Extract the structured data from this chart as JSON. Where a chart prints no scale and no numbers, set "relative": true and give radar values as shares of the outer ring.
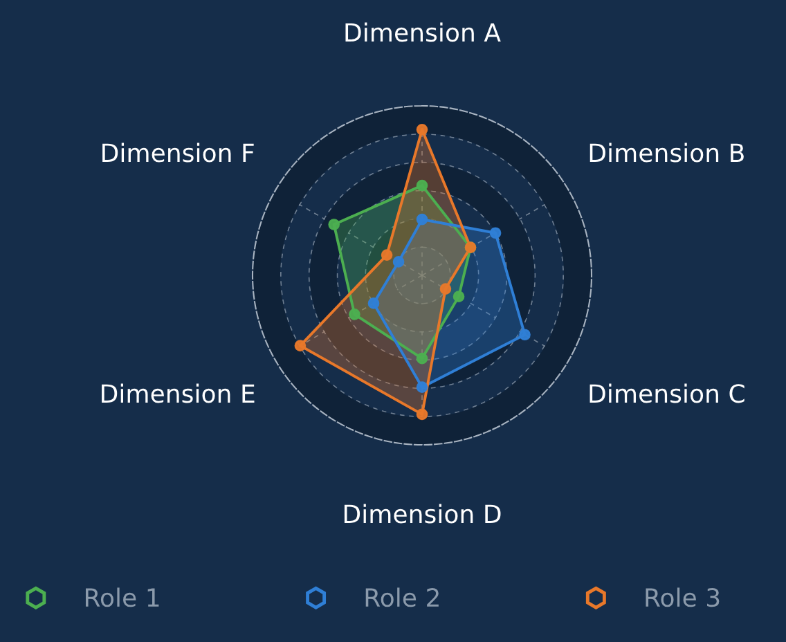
{
  "chart_data": {
    "type": "radar",
    "relative": true,
    "categories": [
      "Dimension A",
      "Dimension B",
      "Dimension C",
      "Dimension D",
      "Dimension E",
      "Dimension F"
    ],
    "series": [
      {
        "name": "Role 1",
        "color": "#4caf50",
        "values": [
          0.53,
          0.33,
          0.25,
          0.49,
          0.46,
          0.6
        ]
      },
      {
        "name": "Role 2",
        "color": "#2f7fd6",
        "values": [
          0.33,
          0.5,
          0.7,
          0.66,
          0.33,
          0.16
        ]
      },
      {
        "name": "Role 3",
        "color": "#e8782a",
        "values": [
          0.86,
          0.33,
          0.16,
          0.82,
          0.83,
          0.24
        ]
      }
    ],
    "grid": true,
    "legend": "bottom",
    "marker": "circle",
    "line_style": "solid"
  }
}
